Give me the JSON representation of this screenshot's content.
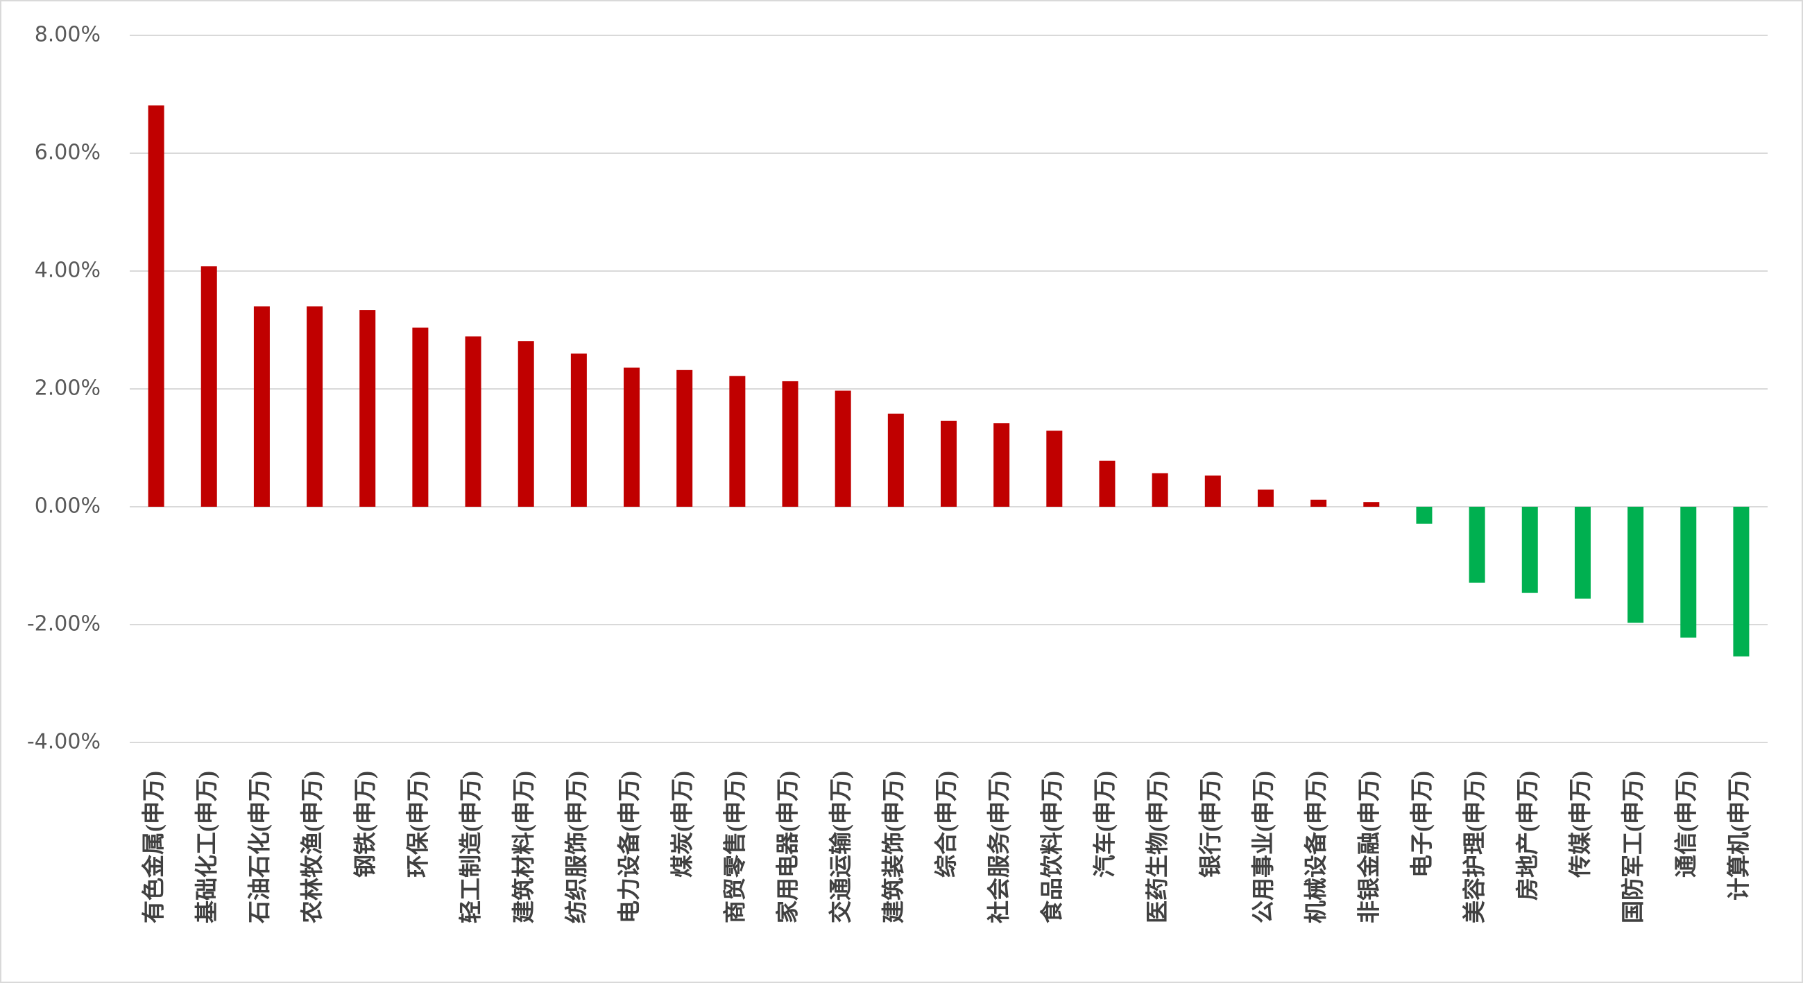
{
  "chart_data": {
    "type": "bar",
    "categories": [
      "有色金属(申万)",
      "基础化工(申万)",
      "石油石化(申万)",
      "农林牧渔(申万)",
      "钢铁(申万)",
      "环保(申万)",
      "轻工制造(申万)",
      "建筑材料(申万)",
      "纺织服饰(申万)",
      "电力设备(申万)",
      "煤炭(申万)",
      "商贸零售(申万)",
      "家用电器(申万)",
      "交通运输(申万)",
      "建筑装饰(申万)",
      "综合(申万)",
      "社会服务(申万)",
      "食品饮料(申万)",
      "汽车(申万)",
      "医药生物(申万)",
      "银行(申万)",
      "公用事业(申万)",
      "机械设备(申万)",
      "非银金融(申万)",
      "电子(申万)",
      "美容护理(申万)",
      "房地产(申万)",
      "传媒(申万)",
      "国防军工(申万)",
      "通信(申万)",
      "计算机(申万)"
    ],
    "values": [
      6.81,
      4.08,
      3.4,
      3.4,
      3.34,
      3.04,
      2.89,
      2.81,
      2.6,
      2.36,
      2.32,
      2.22,
      2.13,
      1.97,
      1.58,
      1.46,
      1.42,
      1.29,
      0.78,
      0.57,
      0.53,
      0.29,
      0.12,
      0.08,
      -0.29,
      -1.29,
      -1.46,
      -1.56,
      -1.97,
      -2.22,
      -2.54
    ],
    "color": "#c00000",
    "negative_color": "#00b050",
    "ylim": [
      -4,
      8
    ],
    "yticks": [
      {
        "value": -4,
        "label": "-4.00%"
      },
      {
        "value": -2,
        "label": "-2.00%"
      },
      {
        "value": 0,
        "label": "0.00%"
      },
      {
        "value": 2,
        "label": "2.00%"
      },
      {
        "value": 4,
        "label": "4.00%"
      },
      {
        "value": 6,
        "label": "6.00%"
      },
      {
        "value": 8,
        "label": "8.00%"
      }
    ],
    "grid": true
  }
}
